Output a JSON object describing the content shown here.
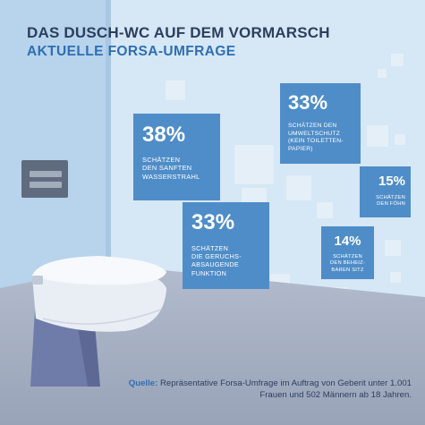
{
  "colors": {
    "sky": "#c9def0",
    "card": "#4f8dc8",
    "title": "#2b3f5e",
    "subtitle": "#2e6fb2",
    "floor": "#a5aec1"
  },
  "icons": [
    "flush-plate-icon",
    "wall-hung-toilet-icon"
  ],
  "chart_data": {
    "type": "bar",
    "title": "DAS DUSCH-WC AUF DEM VORMARSCH",
    "subtitle": "AKTUELLE FORSA-UMFRAGE",
    "categories": [
      "SCHÄTZEN DEN SANFTEN WASSERSTRAHL",
      "SCHÄTZEN DEN UMWELTSCHUTZ (KEIN TOILETTEN-PAPIER)",
      "SCHÄTZEN DIE GERUCHS-ABSAUGENDE FUNKTION",
      "SCHÄTZEN DEN FÖHN",
      "SCHÄTZEN DEN BEHEIZ-BAREN SITZ"
    ],
    "values": [
      38,
      33,
      33,
      15,
      14
    ],
    "value_labels": [
      "38%",
      "33%",
      "33%",
      "15%",
      "14%"
    ],
    "label_lines": [
      [
        "SCHÄTZEN",
        "DEN SANFTEN",
        "WASSERSTRAHL"
      ],
      [
        "SCHÄTZEN DEN",
        "UMWELTSCHUTZ",
        "(KEIN TOILETTEN-",
        "PAPIER)"
      ],
      [
        "SCHÄTZEN",
        "DIE GERUCHS-",
        "ABSAUGENDE",
        "FUNKTION"
      ],
      [
        "SCHÄTZEN",
        "DEN FÖHN"
      ],
      [
        "SCHÄTZEN",
        "DEN BEHEIZ-",
        "BAREN SITZ"
      ]
    ],
    "xlabel": "",
    "ylabel": "",
    "grid": false,
    "legend": "none"
  },
  "source": {
    "label": "Quelle:",
    "text": "Repräsentative Forsa-Umfrage im Auftrag von Geberit unter 1.001 Frauen und 502 Männern ab 18 Jahren."
  }
}
